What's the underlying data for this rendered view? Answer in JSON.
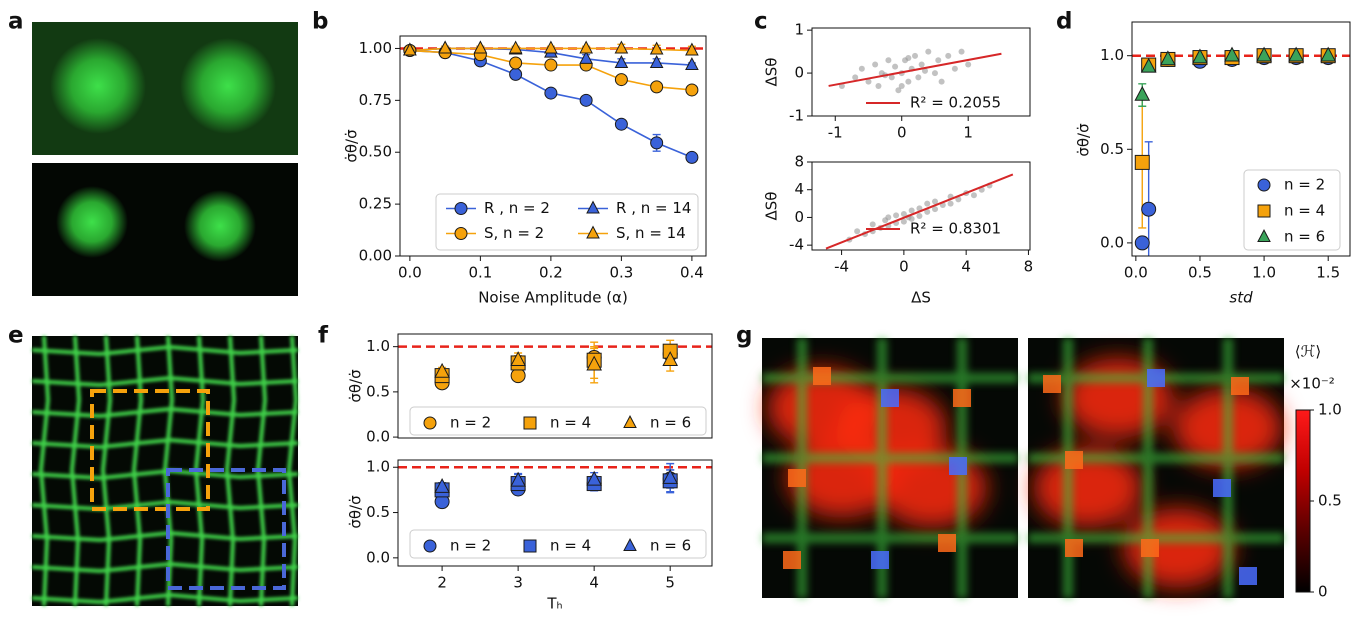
{
  "panel_labels": [
    "a",
    "b",
    "c",
    "d",
    "e",
    "f",
    "g"
  ],
  "chart_data": [
    {
      "type": "line",
      "xlabel": "Noise Amplitude (α)",
      "ylabel": "σ̇θ/σ̇",
      "x": [
        0,
        0.05,
        0.1,
        0.15,
        0.2,
        0.25,
        0.3,
        0.35,
        0.4
      ],
      "xlim": [
        -0.014,
        0.42
      ],
      "ylim": [
        0,
        1.06
      ],
      "xticks": [
        {
          "value": 0,
          "label": "0.0"
        },
        0.1,
        0.2,
        0.3,
        0.4
      ],
      "yticks": [
        {
          "value": 0,
          "label": "0.00"
        },
        0.25,
        {
          "value": 0.5,
          "label": "0.50"
        },
        0.75,
        {
          "value": 1,
          "label": "1.00"
        }
      ],
      "hline": {
        "value": 1,
        "color": "#e8231a"
      },
      "legend": "lower right",
      "series": [
        {
          "name": "R , n = 2",
          "color": "#3a62d9",
          "marker": "circle",
          "values": [
            0.99,
            0.98,
            0.94,
            0.875,
            0.785,
            0.75,
            0.635,
            0.545,
            0.475
          ],
          "errors": [
            0.01,
            0.01,
            0.01,
            0.02,
            0.02,
            0.01,
            0.01,
            0.04,
            0.02
          ]
        },
        {
          "name": "S, n = 2",
          "color": "#f5a20c",
          "marker": "circle",
          "values": [
            0.99,
            0.98,
            0.97,
            0.93,
            0.92,
            0.92,
            0.85,
            0.815,
            0.8
          ],
          "errors": [
            0.01,
            0.01,
            0.01,
            0.01,
            0.02,
            0.02,
            0.02,
            0.02,
            0.02
          ]
        },
        {
          "name": "R , n = 14",
          "color": "#3a62d9",
          "marker": "triangle",
          "values": [
            0.99,
            1.0,
            1.0,
            0.995,
            0.98,
            0.95,
            0.93,
            0.93,
            0.92
          ],
          "errors": [
            0.01,
            0.01,
            0.01,
            0.01,
            0.01,
            0.02,
            0.02,
            0.02,
            0.01
          ]
        },
        {
          "name": "S, n = 14",
          "color": "#f5a20c",
          "marker": "triangle",
          "values": [
            0.99,
            1.0,
            1.0,
            1.0,
            1.0,
            1.0,
            1.0,
            0.995,
            0.99
          ],
          "errors": [
            0.01,
            0.01,
            0.01,
            0.01,
            0.01,
            0.01,
            0.02,
            0.02,
            0.02
          ]
        }
      ]
    },
    {
      "type": "scatter",
      "ylabel": "ΔSθ",
      "xlim": [
        -1.35,
        1.93
      ],
      "ylim": [
        -1,
        1.05
      ],
      "xticks": [
        -1,
        0,
        1
      ],
      "yticks": [
        -1,
        0,
        1
      ],
      "point_color": "#9a9a9a",
      "points": {
        "x": [
          -0.9,
          -0.7,
          -0.6,
          -0.5,
          -0.4,
          -0.35,
          -0.3,
          -0.2,
          -0.15,
          -0.1,
          -0.05,
          0,
          0.05,
          0.1,
          0.15,
          0.2,
          0.25,
          0.3,
          0.35,
          0.4,
          0.5,
          0.55,
          0.6,
          0.7,
          0.8,
          0.9,
          1.0,
          -0.25,
          0.1,
          0.0
        ],
        "y": [
          -0.3,
          -0.1,
          0.1,
          -0.2,
          0.2,
          -0.3,
          0.0,
          0.3,
          -0.1,
          0.15,
          -0.4,
          0.0,
          0.3,
          -0.2,
          0.1,
          0.4,
          -0.1,
          0.2,
          0.05,
          0.5,
          0.0,
          0.3,
          -0.2,
          0.4,
          0.1,
          0.5,
          0.2,
          -0.05,
          0.35,
          -0.3
        ]
      },
      "fit": {
        "name": "R² = 0.2055",
        "color": "#d62728",
        "x": [
          -1.1,
          1.5
        ],
        "y": [
          -0.3,
          0.45
        ]
      }
    },
    {
      "type": "scatter",
      "xlabel": "ΔS",
      "ylabel": "ΔSθ",
      "xlim": [
        -5.9,
        8.1
      ],
      "ylim": [
        -4.7,
        8
      ],
      "xticks": [
        -4,
        0,
        4,
        8
      ],
      "yticks": [
        -4,
        0,
        4,
        8
      ],
      "point_color": "#9a9a9a",
      "points": {
        "x": [
          -3.5,
          -3,
          -2.5,
          -2,
          -2,
          -1.5,
          -1,
          -1,
          -0.5,
          -0.5,
          0,
          0,
          0.3,
          0.5,
          0.5,
          1,
          1,
          1.5,
          1.5,
          2,
          2,
          2.5,
          3,
          3,
          3.5,
          4,
          4.5,
          5,
          5.5,
          -1.2
        ],
        "y": [
          -3.2,
          -2.0,
          -2.4,
          -1.0,
          -2.0,
          -1.5,
          0.0,
          -1.2,
          -0.8,
          0.3,
          0.5,
          -0.6,
          0.0,
          1.0,
          -0.2,
          0.2,
          1.3,
          0.8,
          2.0,
          1.2,
          2.3,
          1.8,
          3.0,
          2.0,
          2.6,
          3.5,
          3.2,
          4.0,
          4.6,
          -0.4
        ]
      },
      "fit": {
        "name": "R² = 0.8301",
        "color": "#d62728",
        "x": [
          -5,
          7
        ],
        "y": [
          -4.5,
          6.2
        ]
      }
    },
    {
      "type": "errorbar",
      "xlabel": "std",
      "ylabel": "σ̇θ/σ̇",
      "x": [
        0.05,
        0.1,
        0.25,
        0.5,
        0.75,
        1.0,
        1.25,
        1.5
      ],
      "xlim": [
        -0.03,
        1.67
      ],
      "ylim": [
        -0.07,
        1.18
      ],
      "xticks": [
        {
          "value": 0,
          "label": "0.0"
        },
        0.5,
        {
          "value": 1,
          "label": "1.0"
        },
        1.5
      ],
      "yticks": [
        {
          "value": 0,
          "label": "0.0"
        },
        0.5,
        {
          "value": 1,
          "label": "1.0"
        }
      ],
      "hline": {
        "value": 1,
        "color": "#e8231a"
      },
      "legend": "lower right",
      "series": [
        {
          "name": "n = 2",
          "color": "#3a62d9",
          "marker": "circle",
          "values": [
            0,
            0.18,
            0.98,
            0.97,
            0.98,
            0.99,
            0.99,
            0.99
          ],
          "errors": [
            0.01,
            0.36,
            0.01,
            0.01,
            0.01,
            0.01,
            0.01,
            0.01
          ]
        },
        {
          "name": "n = 4",
          "color": "#f5a20c",
          "marker": "square",
          "values": [
            0.43,
            0.95,
            0.98,
            0.99,
            0.99,
            1.0,
            1.0,
            1.0
          ],
          "errors": [
            0.35,
            0.02,
            0.01,
            0.01,
            0.01,
            0.01,
            0.01,
            0.01
          ]
        },
        {
          "name": "n = 6",
          "color": "#3aa35a",
          "marker": "triangle",
          "values": [
            0.79,
            0.94,
            0.98,
            0.99,
            1.0,
            1.0,
            1.0,
            1.0
          ],
          "errors": [
            0.06,
            0.02,
            0.01,
            0.01,
            0.01,
            0.01,
            0.01,
            0.01
          ]
        }
      ]
    },
    {
      "type": "errorbar",
      "ylabel": "σ̇θ/σ̇",
      "x": [
        2,
        3,
        4,
        5
      ],
      "xlim": [
        1.42,
        5.55
      ],
      "ylim": [
        -0.01,
        1.14
      ],
      "yticks": [
        {
          "value": 0,
          "label": "0.0"
        },
        0.5,
        {
          "value": 1,
          "label": "1.0"
        }
      ],
      "hline": {
        "value": 1,
        "color": "#e8231a"
      },
      "legend": "lower center",
      "series": [
        {
          "name": "n = 2",
          "color": "#f5a20c",
          "marker": "circle",
          "values": [
            0.6,
            0.68,
            0.88,
            0.92
          ],
          "errors": [
            0.05,
            0.06,
            0.1,
            0.08
          ]
        },
        {
          "name": "n = 4",
          "color": "#f5a20c",
          "marker": "square",
          "values": [
            0.68,
            0.82,
            0.85,
            0.95
          ],
          "errors": [
            0.06,
            0.08,
            0.2,
            0.12
          ]
        },
        {
          "name": "n = 6",
          "color": "#f5a20c",
          "marker": "triangle",
          "values": [
            0.72,
            0.85,
            0.8,
            0.85
          ],
          "errors": [
            0.05,
            0.08,
            0.2,
            0.12
          ]
        }
      ]
    },
    {
      "type": "errorbar",
      "xlabel": "Tₕ",
      "ylabel": "σ̇θ/σ̇",
      "x": [
        2,
        3,
        4,
        5
      ],
      "xlim": [
        1.42,
        5.55
      ],
      "ylim": [
        -0.09,
        1.08
      ],
      "xticks": [
        2,
        3,
        4,
        5
      ],
      "yticks": [
        {
          "value": 0,
          "label": "0.0"
        },
        0.5,
        {
          "value": 1,
          "label": "1.0"
        }
      ],
      "hline": {
        "value": 1,
        "color": "#e8231a"
      },
      "legend": "lower center",
      "series": [
        {
          "name": "n = 2",
          "color": "#3a62d9",
          "marker": "circle",
          "values": [
            0.62,
            0.76,
            0.82,
            0.87
          ],
          "errors": [
            0.05,
            0.06,
            0.06,
            0.1
          ]
        },
        {
          "name": "n = 4",
          "color": "#3a62d9",
          "marker": "square",
          "values": [
            0.75,
            0.82,
            0.82,
            0.85
          ],
          "errors": [
            0.06,
            0.1,
            0.08,
            0.12
          ]
        },
        {
          "name": "n = 6",
          "color": "#3a62d9",
          "marker": "triangle",
          "values": [
            0.78,
            0.85,
            0.86,
            0.88
          ],
          "errors": [
            0.05,
            0.08,
            0.08,
            0.16
          ]
        }
      ]
    },
    {
      "type": "colorbar",
      "label": "⟨ℋ̇⟩",
      "multiplier": "×10⁻²",
      "ylim": [
        0,
        1
      ],
      "yticks": [
        0,
        0.5,
        {
          "value": 1,
          "label": "1.0"
        }
      ],
      "colors": [
        "#000000",
        "#5a0000",
        "#c00000",
        "#ff1a1a"
      ]
    }
  ]
}
